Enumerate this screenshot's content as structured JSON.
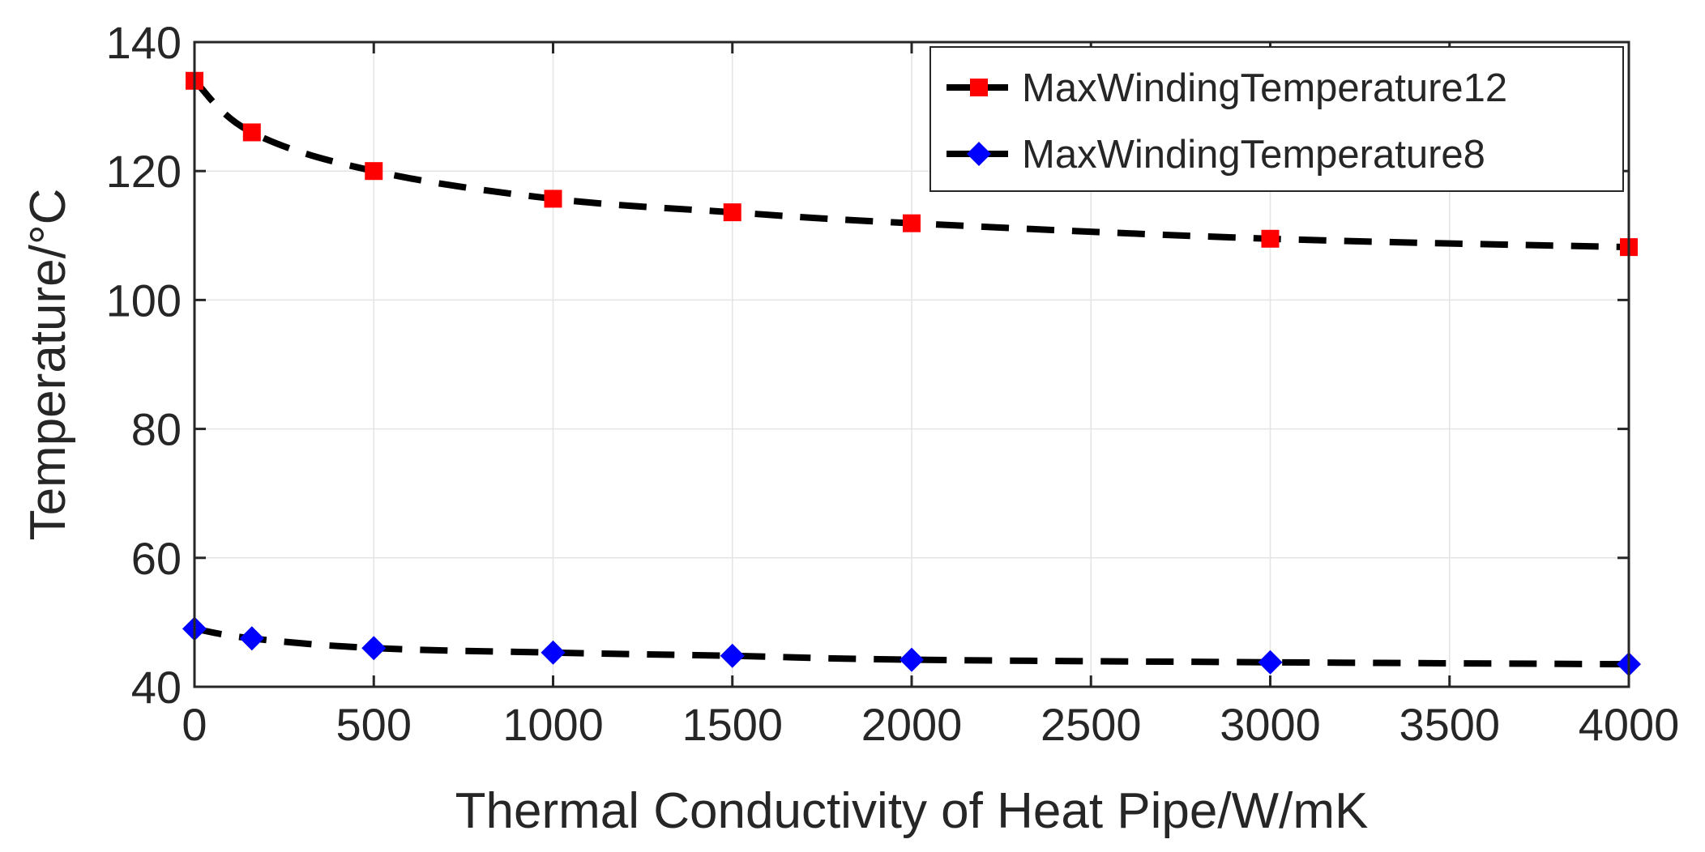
{
  "chart_data": {
    "type": "line",
    "title": "",
    "xlabel": "Thermal Conductivity of Heat Pipe/W/mK",
    "ylabel": "Temperature/°C",
    "xlim": [
      0,
      4000
    ],
    "ylim": [
      40,
      140
    ],
    "xticks": [
      0,
      500,
      1000,
      1500,
      2000,
      2500,
      3000,
      3500,
      4000
    ],
    "yticks": [
      40,
      60,
      80,
      100,
      120,
      140
    ],
    "grid": true,
    "legend_position": "top-right",
    "series": [
      {
        "name": "MaxWindingTemperature12",
        "marker": "square",
        "marker_color": "#ff0000",
        "line_color": "#000000",
        "line_style": "dashed",
        "x": [
          0,
          160,
          500,
          1000,
          1500,
          2000,
          3000,
          4000
        ],
        "y": [
          134,
          126,
          120,
          115.7,
          113.6,
          111.9,
          109.5,
          108.2
        ]
      },
      {
        "name": "MaxWindingTemperature8",
        "marker": "diamond",
        "marker_color": "#0000ff",
        "line_color": "#000000",
        "line_style": "dashed",
        "x": [
          0,
          160,
          500,
          1000,
          1500,
          2000,
          3000,
          4000
        ],
        "y": [
          49,
          47.5,
          46,
          45.3,
          44.8,
          44.2,
          43.8,
          43.5
        ]
      }
    ]
  }
}
